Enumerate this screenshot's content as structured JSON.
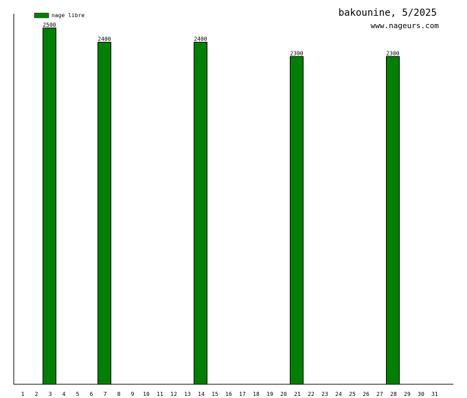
{
  "chart_data": {
    "type": "bar",
    "title": "bakounine, 5/2025",
    "subtitle": "www.nageurs.com",
    "xlabel": "",
    "ylabel": "",
    "categories": [
      "1",
      "2",
      "3",
      "4",
      "5",
      "6",
      "7",
      "8",
      "9",
      "10",
      "11",
      "12",
      "13",
      "14",
      "15",
      "16",
      "17",
      "18",
      "19",
      "20",
      "21",
      "22",
      "23",
      "24",
      "25",
      "26",
      "27",
      "28",
      "29",
      "30",
      "31"
    ],
    "series": [
      {
        "name": "nage libre",
        "color": "#008000",
        "values": [
          0,
          0,
          2500,
          0,
          0,
          0,
          2400,
          0,
          0,
          0,
          0,
          0,
          0,
          2400,
          0,
          0,
          0,
          0,
          0,
          0,
          2300,
          0,
          0,
          0,
          0,
          0,
          0,
          2300,
          0,
          0,
          0
        ]
      }
    ],
    "ylim": [
      0,
      2600
    ],
    "grid": false,
    "legend": "top-left"
  }
}
